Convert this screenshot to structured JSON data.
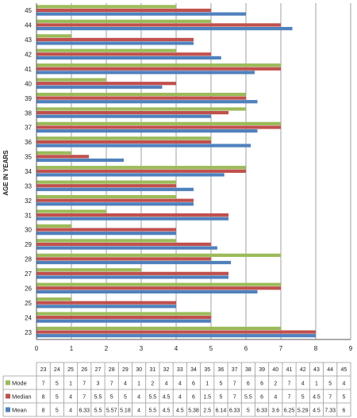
{
  "chart_data": {
    "type": "bar",
    "orientation": "horizontal",
    "ylabel": "AGE IN YEARS",
    "xlabel": "",
    "xlim": [
      0,
      9
    ],
    "xticks": [
      0,
      1,
      2,
      3,
      4,
      5,
      6,
      7,
      8,
      9
    ],
    "grid": true,
    "legend": "data table below chart",
    "categories": [
      "23",
      "24",
      "25",
      "26",
      "27",
      "28",
      "29",
      "30",
      "31",
      "32",
      "33",
      "34",
      "35",
      "36",
      "37",
      "38",
      "39",
      "40",
      "41",
      "42",
      "43",
      "44",
      "45"
    ],
    "series": [
      {
        "name": "Mode",
        "color": "#9BBB59",
        "values": [
          7,
          5,
          1,
          7,
          3,
          7,
          4,
          1,
          2,
          4,
          4,
          6,
          1,
          5,
          7,
          6,
          6,
          2,
          7,
          4,
          1,
          5,
          4
        ],
        "labels": [
          "7",
          "5",
          "1",
          "7",
          "3",
          "7",
          "4",
          "1",
          "2",
          "4",
          "4",
          "6",
          "1",
          "5",
          "7",
          "6",
          "6",
          "2",
          "7",
          "4",
          "1",
          "5",
          "4"
        ]
      },
      {
        "name": "Median",
        "color": "#C0504D",
        "values": [
          8,
          5,
          4,
          7,
          5.5,
          5,
          5,
          4,
          5.5,
          4.5,
          4,
          6,
          1.5,
          5,
          7,
          5.5,
          6,
          4,
          7,
          5,
          4.5,
          7,
          5
        ],
        "labels": [
          "8",
          "5",
          "4",
          "7",
          "5.5",
          "5",
          "5",
          "4",
          "5.5",
          "4.5",
          "4",
          "6",
          "1.5",
          "5",
          "7",
          "5.5",
          "6",
          "4",
          "7",
          "5",
          "4.5",
          "7",
          "5"
        ]
      },
      {
        "name": "Mean",
        "color": "#4F81BD",
        "values": [
          8,
          5,
          4,
          6.33,
          5.5,
          5.57,
          5.18,
          4,
          5.5,
          4.5,
          4.5,
          5.38,
          2.5,
          6.14,
          6.33,
          5,
          6.33,
          3.6,
          6.25,
          5.29,
          4.5,
          7.33,
          6
        ],
        "labels": [
          "8",
          "5",
          "4",
          "6.33",
          "5.5",
          "5.57",
          "5.18",
          "4",
          "5.5",
          "4.5",
          "4.5",
          "5.38",
          "2.5",
          "6.14",
          "6.33",
          "5",
          "6.33",
          "3.6",
          "6.25",
          "5.29",
          "4.5",
          "7.33",
          "6"
        ]
      }
    ]
  }
}
